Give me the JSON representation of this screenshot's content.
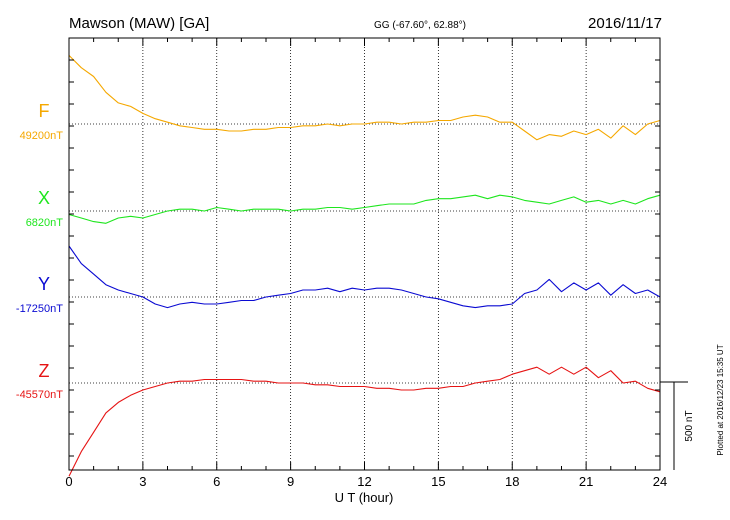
{
  "chart_data": {
    "type": "line",
    "title": "Mawson (MAW)  [GA]",
    "coords": "GG (-67.60°,  62.88°)",
    "date": "2016/11/17",
    "xlabel": "U T (hour)",
    "xlim": [
      0,
      24
    ],
    "x_ticks": [
      "0",
      "3",
      "6",
      "9",
      "12",
      "15",
      "18",
      "21",
      "24"
    ],
    "scale_label": "500 nT",
    "scale_nT": 500,
    "footer": "Plotted at 2016/12/23 15:35 UT",
    "x": [
      0,
      0.5,
      1,
      1.5,
      2,
      2.5,
      3,
      3.5,
      4,
      4.5,
      5,
      5.5,
      6,
      6.5,
      7,
      7.5,
      8,
      8.5,
      9,
      9.5,
      10,
      10.5,
      11,
      11.5,
      12,
      12.5,
      13,
      13.5,
      14,
      14.5,
      15,
      15.5,
      16,
      16.5,
      17,
      17.5,
      18,
      18.5,
      19,
      19.5,
      20,
      20.5,
      21,
      21.5,
      22,
      22.5,
      23,
      23.5,
      24
    ],
    "series": [
      {
        "name": "F",
        "baseline_label": "49200nT",
        "color": "#f5a800",
        "values": [
          [
            49590,
            49520,
            49470,
            49380,
            49320,
            49300,
            49260,
            49230,
            49210,
            49190,
            49180,
            49170,
            49170,
            49160,
            49160,
            49170,
            49170,
            49180,
            49180,
            49190,
            49190,
            49200,
            49190,
            49200,
            49200,
            49210,
            49210,
            49200,
            49210,
            49210,
            49220,
            49220,
            49240,
            49250,
            49240,
            49210,
            49210,
            49160,
            49110,
            49140,
            49130,
            49160,
            49140,
            49170,
            49120,
            49190,
            49140,
            49200,
            49220
          ]
        ]
      },
      {
        "name": "X",
        "baseline_label": "6820nT",
        "color": "#1ee61e",
        "values": [
          [
            6800,
            6780,
            6760,
            6750,
            6780,
            6790,
            6780,
            6800,
            6820,
            6830,
            6830,
            6820,
            6840,
            6830,
            6820,
            6830,
            6830,
            6830,
            6820,
            6830,
            6830,
            6840,
            6840,
            6830,
            6840,
            6850,
            6860,
            6860,
            6860,
            6880,
            6890,
            6890,
            6900,
            6910,
            6890,
            6910,
            6900,
            6880,
            6870,
            6860,
            6880,
            6900,
            6870,
            6880,
            6860,
            6880,
            6860,
            6890,
            6910
          ]
        ]
      },
      {
        "name": "Y",
        "baseline_label": "-17250nT",
        "color": "#0a0ad2",
        "values": [
          [
            -16960,
            -17060,
            -17120,
            -17180,
            -17210,
            -17230,
            -17250,
            -17290,
            -17310,
            -17290,
            -17280,
            -17290,
            -17290,
            -17280,
            -17270,
            -17270,
            -17250,
            -17240,
            -17230,
            -17210,
            -17210,
            -17200,
            -17220,
            -17200,
            -17210,
            -17200,
            -17200,
            -17210,
            -17230,
            -17250,
            -17260,
            -17280,
            -17300,
            -17310,
            -17300,
            -17300,
            -17290,
            -17230,
            -17210,
            -17150,
            -17220,
            -17170,
            -17210,
            -17170,
            -17240,
            -17180,
            -17230,
            -17210,
            -17250
          ]
        ]
      },
      {
        "name": "Z",
        "baseline_label": "-45570nT",
        "color": "#e61414",
        "values": [
          [
            -46100,
            -45960,
            -45850,
            -45740,
            -45680,
            -45640,
            -45610,
            -45590,
            -45570,
            -45560,
            -45560,
            -45550,
            -45550,
            -45550,
            -45550,
            -45560,
            -45560,
            -45570,
            -45570,
            -45570,
            -45580,
            -45580,
            -45590,
            -45590,
            -45590,
            -45600,
            -45600,
            -45610,
            -45610,
            -45600,
            -45600,
            -45590,
            -45590,
            -45570,
            -45560,
            -45550,
            -45520,
            -45500,
            -45480,
            -45520,
            -45480,
            -45520,
            -45480,
            -45540,
            -45500,
            -45570,
            -45560,
            -45600,
            -45620
          ]
        ]
      }
    ]
  }
}
